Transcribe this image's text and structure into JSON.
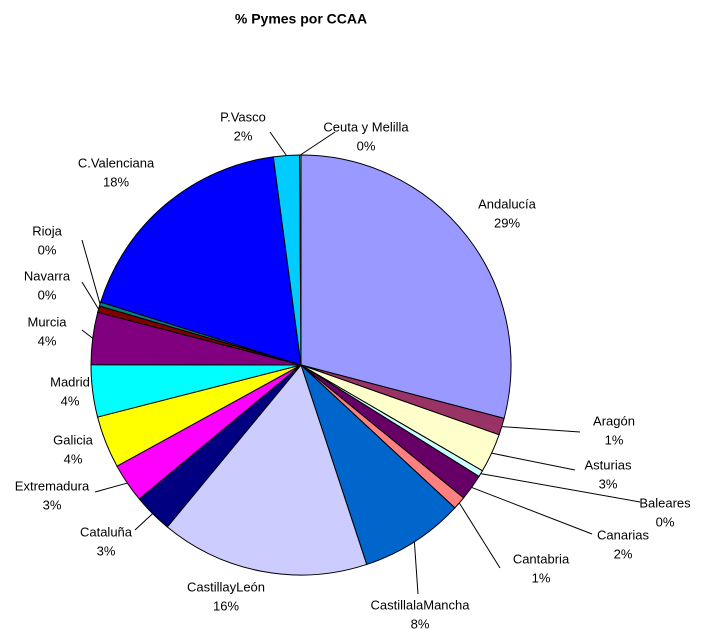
{
  "chart_data": {
    "type": "pie",
    "title": "% Pymes por CCAA",
    "categories": [
      "Andalucía",
      "Aragón",
      "Asturias",
      "Baleares",
      "Canarias",
      "Cantabria",
      "CastillalaMancha",
      "CastillayLeón",
      "Cataluña",
      "Extremadura",
      "Galicia",
      "Madrid",
      "Murcia",
      "Navarra",
      "Rioja",
      "C.Valenciana",
      "P.Vasco",
      "Ceuta y Melilla"
    ],
    "values": [
      29,
      1.3,
      3,
      0.5,
      2,
      1,
      8,
      16,
      3,
      3,
      4,
      4,
      4,
      0.5,
      0.3,
      18,
      2,
      0.1
    ],
    "value_labels": [
      "29%",
      "1%",
      "3%",
      "0%",
      "2%",
      "1%",
      "8%",
      "16%",
      "3%",
      "3%",
      "4%",
      "4%",
      "4%",
      "0%",
      "0%",
      "18%",
      "2%",
      "0%"
    ],
    "colors": [
      "#9999ff",
      "#993366",
      "#ffffcc",
      "#ccffff",
      "#660066",
      "#ff8080",
      "#0066cc",
      "#ccccff",
      "#000080",
      "#ff00ff",
      "#ffff00",
      "#00ffff",
      "#800080",
      "#800000",
      "#008080",
      "#0000ff",
      "#00ccff",
      "#ccffcc"
    ]
  }
}
